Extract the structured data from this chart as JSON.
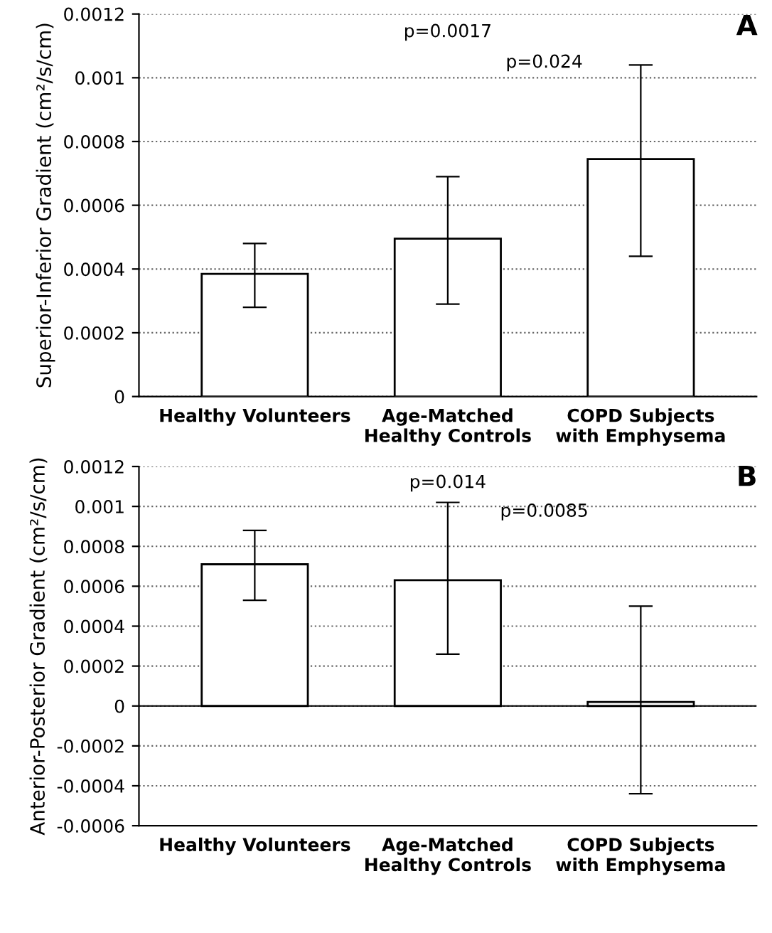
{
  "chart_data": [
    {
      "type": "bar",
      "ylabel": "Superior-Inferior Gradient (cm²/s/cm)",
      "categories": [
        "Healthy Volunteers",
        "Age-Matched\nHealthy Controls",
        "COPD Subjects\nwith Emphysema"
      ],
      "values": [
        0.000385,
        0.000495,
        0.000745
      ],
      "errors": [
        [
          0.00028,
          0.00048
        ],
        [
          0.00029,
          0.00069
        ],
        [
          0.00044,
          0.00104
        ]
      ],
      "color": "#ffffff",
      "ylim": [
        0,
        0.0012
      ],
      "yticks": [
        0,
        0.0002,
        0.0004,
        0.0006,
        0.0008,
        0.001,
        0.0012
      ],
      "grid": "y",
      "annotations": [
        "p=0.0017",
        "p=0.024",
        "A"
      ]
    },
    {
      "type": "bar",
      "ylabel": "Anterior-Posterior Gradient (cm²/s/cm)",
      "categories": [
        "Healthy Volunteers",
        "Age-Matched\nHealthy Controls",
        "COPD Subjects\nwith Emphysema"
      ],
      "values": [
        0.00071,
        0.00063,
        2e-05
      ],
      "errors": [
        [
          0.00053,
          0.00088
        ],
        [
          0.00026,
          0.00102
        ],
        [
          -0.00044,
          0.0005
        ]
      ],
      "color": "#ffffff",
      "ylim": [
        -0.0006,
        0.0012
      ],
      "yticks": [
        -0.0006,
        -0.0004,
        -0.0002,
        0,
        0.0002,
        0.0004,
        0.0006,
        0.0008,
        0.001,
        0.0012
      ],
      "grid": "y",
      "annotations": [
        "p=0.014",
        "p=0.0085",
        "B"
      ]
    }
  ]
}
